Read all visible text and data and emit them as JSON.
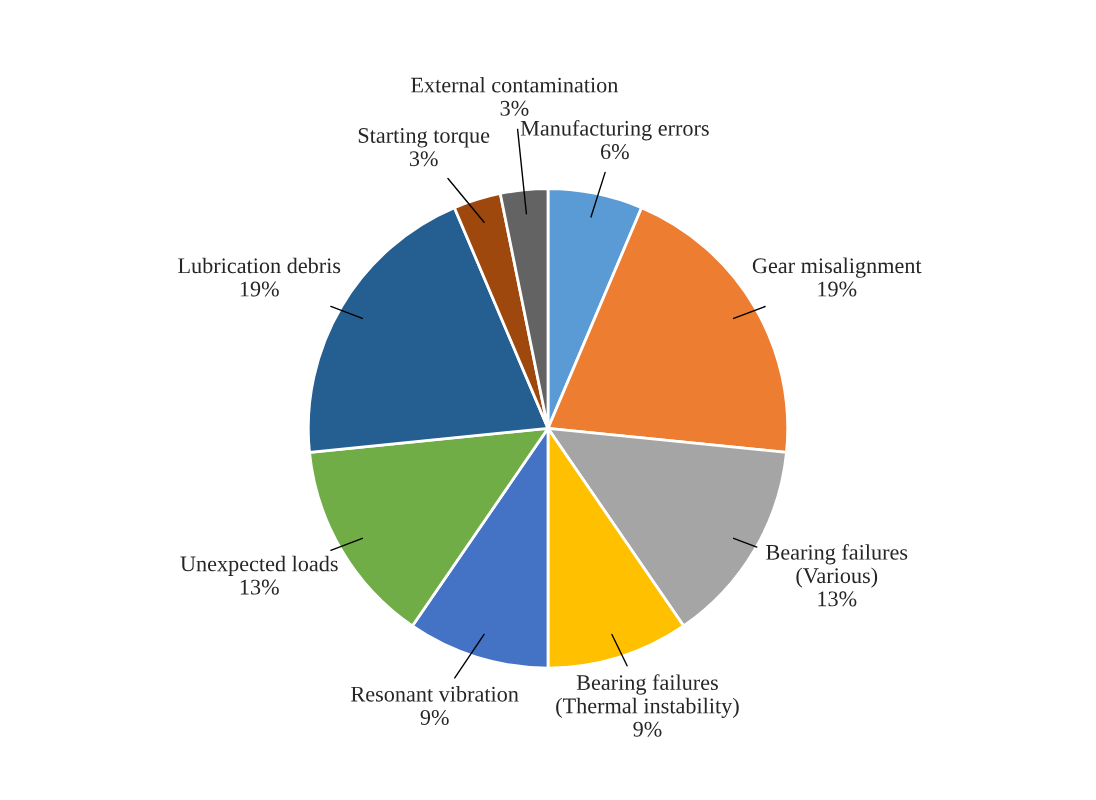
{
  "chart_data": {
    "type": "pie",
    "categories": [
      "Manufacturing errors",
      "Gear misalignment",
      "Bearing failures\n(Various)",
      "Bearing failures\n(Thermal instability)",
      "Resonant vibration",
      "Unexpected loads",
      "Lubrication debris",
      "Starting torque",
      "External contamination"
    ],
    "values": [
      6,
      19,
      13,
      9,
      9,
      13,
      19,
      3,
      3
    ],
    "value_labels": [
      "6%",
      "19%",
      "13%",
      "9%",
      "9%",
      "13%",
      "19%",
      "3%",
      "3%"
    ],
    "colors": [
      "#5b9bd5",
      "#ed7d31",
      "#a5a5a5",
      "#ffc000",
      "#4472c4",
      "#70ad47",
      "#255e91",
      "#9e480e",
      "#636363"
    ]
  }
}
